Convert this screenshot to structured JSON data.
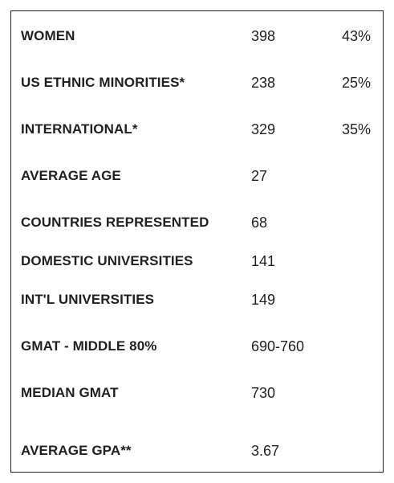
{
  "stats": [
    {
      "label": "WOMEN",
      "value": "398",
      "percent": "43%"
    },
    {
      "label": "US ETHNIC MINORITIES*",
      "value": "238",
      "percent": "25%"
    },
    {
      "label": "INTERNATIONAL*",
      "value": "329",
      "percent": "35%"
    },
    {
      "label": "AVERAGE AGE",
      "value": "27",
      "percent": ""
    },
    {
      "label": "COUNTRIES REPRESENTED",
      "value": "68",
      "percent": ""
    },
    {
      "label": "DOMESTIC UNIVERSITIES",
      "value": "141",
      "percent": ""
    },
    {
      "label": "INT'L UNIVERSITIES",
      "value": "149",
      "percent": ""
    },
    {
      "label": "GMAT - MIDDLE 80%",
      "value": "690-760",
      "percent": ""
    },
    {
      "label": "MEDIAN GMAT",
      "value": "730",
      "percent": ""
    },
    {
      "label": "AVERAGE GPA**",
      "value": "3.67",
      "percent": ""
    }
  ]
}
